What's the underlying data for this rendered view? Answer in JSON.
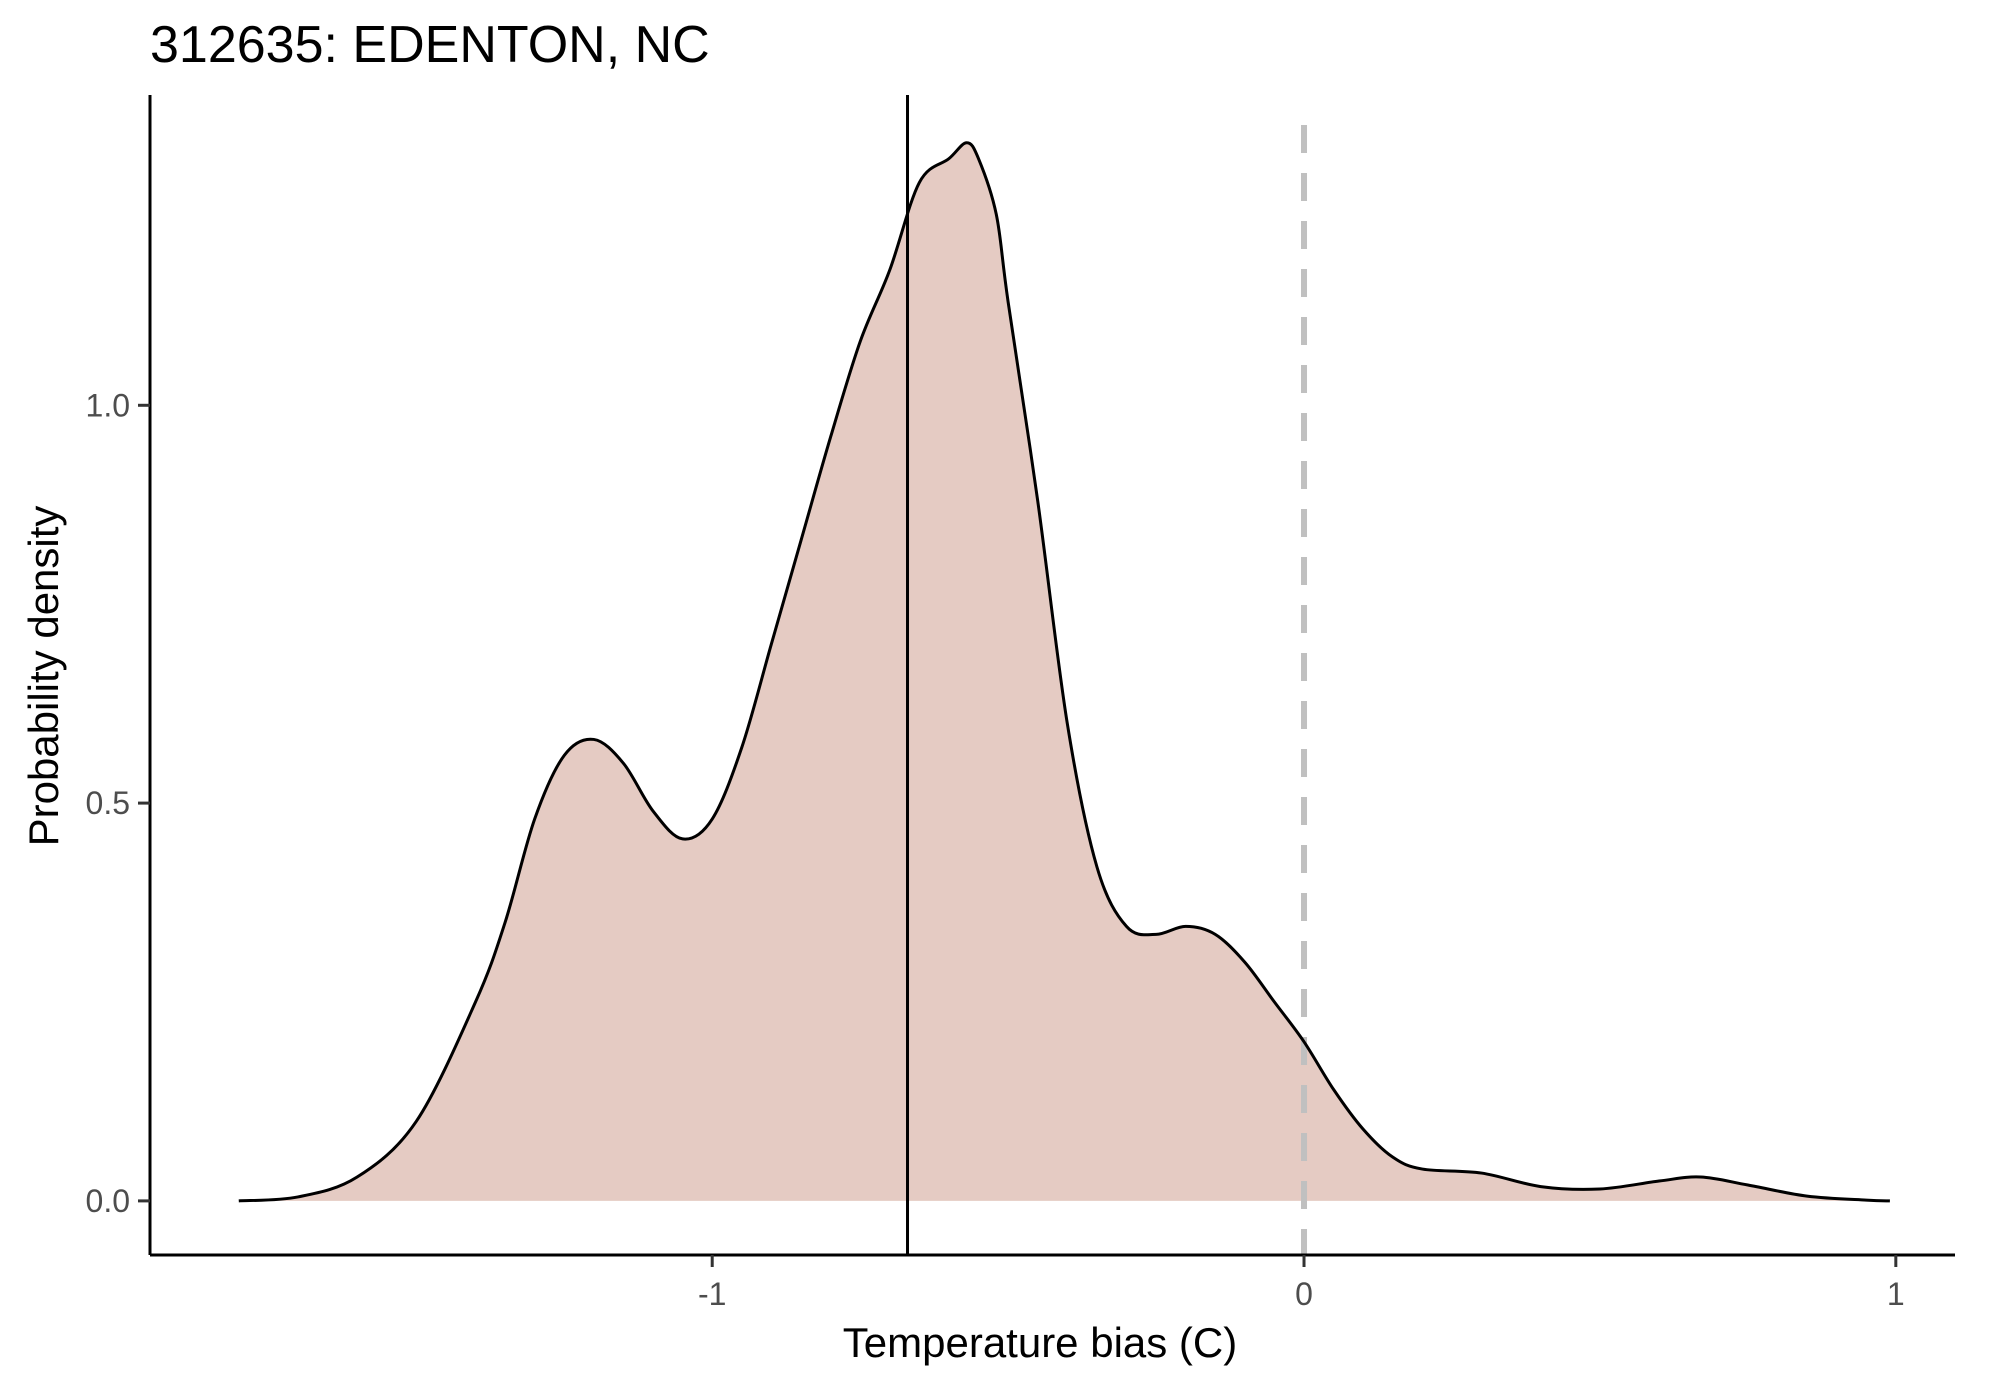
{
  "chart_data": {
    "type": "area",
    "title": "312635: EDENTON, NC",
    "xlabel": "Temperature bias (C)",
    "ylabel": "Probability density",
    "xlim": [
      -1.95,
      1.1
    ],
    "ylim": [
      -0.068,
      1.39
    ],
    "x_ticks": [
      -1,
      0,
      1
    ],
    "y_ticks": [
      0.0,
      0.5,
      1.0
    ],
    "x_tick_labels": [
      "-1",
      "0",
      "1"
    ],
    "y_tick_labels": [
      "0.0",
      "0.5",
      "1.0"
    ],
    "grid": false,
    "legend": "none",
    "fill_color": "#e5cbc3",
    "line_color": "#000000",
    "series": [
      {
        "x": [
          -1.8,
          -1.7,
          -1.6,
          -1.5,
          -1.4,
          -1.35,
          -1.3,
          -1.25,
          -1.2,
          -1.15,
          -1.1,
          -1.05,
          -1.0,
          -0.95,
          -0.9,
          -0.85,
          -0.8,
          -0.75,
          -0.7,
          -0.65,
          -0.6,
          -0.57,
          -0.55,
          -0.52,
          -0.5,
          -0.45,
          -0.4,
          -0.35,
          -0.3,
          -0.25,
          -0.2,
          -0.15,
          -0.1,
          -0.05,
          0.0,
          0.05,
          0.1,
          0.15,
          0.2,
          0.3,
          0.4,
          0.5,
          0.6,
          0.67,
          0.75,
          0.85,
          0.95,
          0.99
        ],
        "y": [
          0.0,
          0.005,
          0.03,
          0.1,
          0.25,
          0.35,
          0.48,
          0.56,
          0.58,
          0.55,
          0.49,
          0.455,
          0.48,
          0.57,
          0.7,
          0.83,
          0.96,
          1.08,
          1.17,
          1.28,
          1.31,
          1.33,
          1.31,
          1.24,
          1.13,
          0.88,
          0.6,
          0.42,
          0.345,
          0.335,
          0.345,
          0.335,
          0.3,
          0.25,
          0.2,
          0.14,
          0.09,
          0.055,
          0.04,
          0.035,
          0.018,
          0.015,
          0.025,
          0.03,
          0.02,
          0.006,
          0.001,
          0.0
        ]
      }
    ],
    "reference_lines": [
      {
        "axis": "x",
        "value": -0.67,
        "style": "solid",
        "color": "#000000"
      },
      {
        "axis": "x",
        "value": 0.0,
        "style": "dashed",
        "color": "#c0c0c0"
      }
    ]
  }
}
